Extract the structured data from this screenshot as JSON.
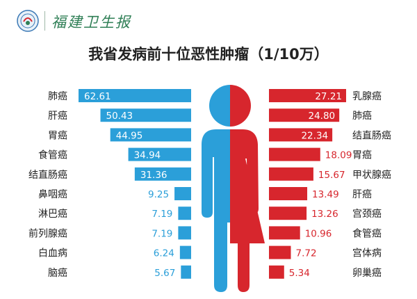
{
  "header": {
    "brand": "福建卫生报"
  },
  "colors": {
    "male": "#2b9fd9",
    "female": "#d7262d",
    "brand": "#2f7f56"
  },
  "chart_data": {
    "type": "bar",
    "title": "我省发病前十位恶性肿瘤（1/10万）",
    "series": [
      {
        "categories": [
          "肺癌",
          "肝癌",
          "胃癌",
          "食管癌",
          "结直肠癌",
          "鼻咽癌",
          "淋巴癌",
          "前列腺癌",
          "白血病",
          "脑癌"
        ],
        "values": [
          62.61,
          50.43,
          44.95,
          34.94,
          31.36,
          9.25,
          7.19,
          7.19,
          6.24,
          5.67
        ],
        "value_labels": [
          "62.61",
          "50.43",
          "44.95",
          "34.94",
          "31.36",
          "9.25",
          "7.19",
          "7.19",
          "6.24",
          "5.67"
        ]
      },
      {
        "categories": [
          "乳腺癌",
          "肺癌",
          "结直肠癌",
          "胃癌",
          "甲状腺癌",
          "肝癌",
          "宫颈癌",
          "食管癌",
          "宫体病",
          "卵巢癌"
        ],
        "values": [
          27.21,
          24.8,
          22.34,
          18.09,
          15.67,
          13.49,
          13.26,
          10.96,
          7.72,
          5.34
        ],
        "value_labels": [
          "27.21",
          "24.80",
          "22.34",
          "18.09",
          "15.67",
          "13.49",
          "13.26",
          "10.96",
          "7.72",
          "5.34"
        ]
      }
    ]
  }
}
